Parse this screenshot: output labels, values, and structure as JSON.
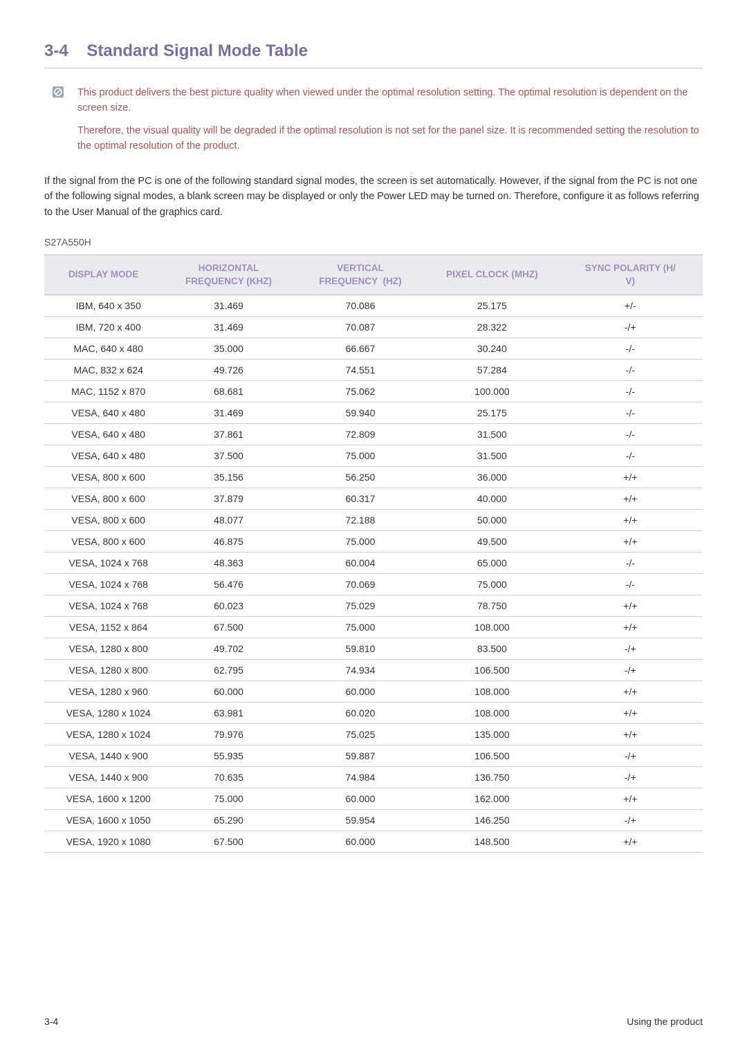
{
  "heading": {
    "num": "3-4",
    "title": "Standard Signal Mode Table"
  },
  "note": {
    "para1": "This product delivers the best picture quality when viewed under the optimal resolution setting. The optimal resolution is dependent on the screen size.",
    "para2": "Therefore, the visual quality will be degraded if the optimal resolution is not set for the panel size. It is recommended setting the resolution to the optimal resolution of the product."
  },
  "body_para": "If the signal from the PC is one of the following standard signal modes, the screen is set automatically. However, if the signal from the PC is not one of the following signal modes, a blank screen may be displayed or only the Power LED may be turned on. Therefore, configure it as follows referring to the User Manual of the graphics card.",
  "model": "S27A550H",
  "table": {
    "columns": [
      "DISPLAY MODE",
      "HORIZONTAL FREQUENCY (KHZ)",
      "VERTICAL FREQUENCY (HZ)",
      "PIXEL CLOCK (MHZ)",
      "SYNC POLARITY (H/V)"
    ],
    "rows": [
      [
        "IBM, 640 x 350",
        "31.469",
        "70.086",
        "25.175",
        "+/-"
      ],
      [
        "IBM, 720 x 400",
        "31.469",
        "70.087",
        "28.322",
        "-/+"
      ],
      [
        "MAC, 640 x 480",
        "35.000",
        "66.667",
        "30.240",
        "-/-"
      ],
      [
        "MAC, 832 x 624",
        "49.726",
        "74.551",
        "57.284",
        "-/-"
      ],
      [
        "MAC, 1152 x 870",
        "68.681",
        "75.062",
        "100.000",
        "-/-"
      ],
      [
        "VESA, 640 x 480",
        "31.469",
        "59.940",
        "25.175",
        "-/-"
      ],
      [
        "VESA, 640 x 480",
        "37.861",
        "72.809",
        "31.500",
        "-/-"
      ],
      [
        "VESA, 640 x 480",
        "37.500",
        "75.000",
        "31.500",
        "-/-"
      ],
      [
        "VESA, 800 x 600",
        "35.156",
        "56.250",
        "36.000",
        "+/+"
      ],
      [
        "VESA, 800 x 600",
        "37.879",
        "60.317",
        "40.000",
        "+/+"
      ],
      [
        "VESA, 800 x 600",
        "48.077",
        "72.188",
        "50.000",
        "+/+"
      ],
      [
        "VESA, 800 x 600",
        "46.875",
        "75.000",
        "49.500",
        "+/+"
      ],
      [
        "VESA, 1024 x 768",
        "48.363",
        "60.004",
        "65.000",
        "-/-"
      ],
      [
        "VESA, 1024 x 768",
        "56.476",
        "70.069",
        "75.000",
        "-/-"
      ],
      [
        "VESA, 1024 x 768",
        "60.023",
        "75.029",
        "78.750",
        "+/+"
      ],
      [
        "VESA, 1152 x 864",
        "67.500",
        "75.000",
        "108.000",
        "+/+"
      ],
      [
        "VESA, 1280 x 800",
        "49.702",
        "59.810",
        "83.500",
        "-/+"
      ],
      [
        "VESA, 1280 x 800",
        "62.795",
        "74.934",
        "106.500",
        "-/+"
      ],
      [
        "VESA, 1280 x 960",
        "60.000",
        "60.000",
        "108.000",
        "+/+"
      ],
      [
        "VESA, 1280 x 1024",
        "63.981",
        "60.020",
        "108.000",
        "+/+"
      ],
      [
        "VESA, 1280 x 1024",
        "79.976",
        "75.025",
        "135.000",
        "+/+"
      ],
      [
        "VESA, 1440 x 900",
        "55.935",
        "59.887",
        "106.500",
        "-/+"
      ],
      [
        "VESA, 1440 x 900",
        "70.635",
        "74.984",
        "136.750",
        "-/+"
      ],
      [
        "VESA, 1600 x 1200",
        "75.000",
        "60.000",
        "162.000",
        "+/+"
      ],
      [
        "VESA, 1600 x 1050",
        "65.290",
        "59.954",
        "146.250",
        "-/+"
      ],
      [
        "VESA, 1920 x 1080",
        "67.500",
        "60.000",
        "148.500",
        "+/+"
      ]
    ]
  },
  "footer": {
    "left": "3-4",
    "right": "Using the product"
  },
  "colors": {
    "heading": "#7a6da3",
    "note_text": "#b2524f",
    "th_bg": "#e9e9ee",
    "th_text": "#9c92bd",
    "rule": "#cfcfd6",
    "note_icon_bg": "#9aa7b5"
  }
}
